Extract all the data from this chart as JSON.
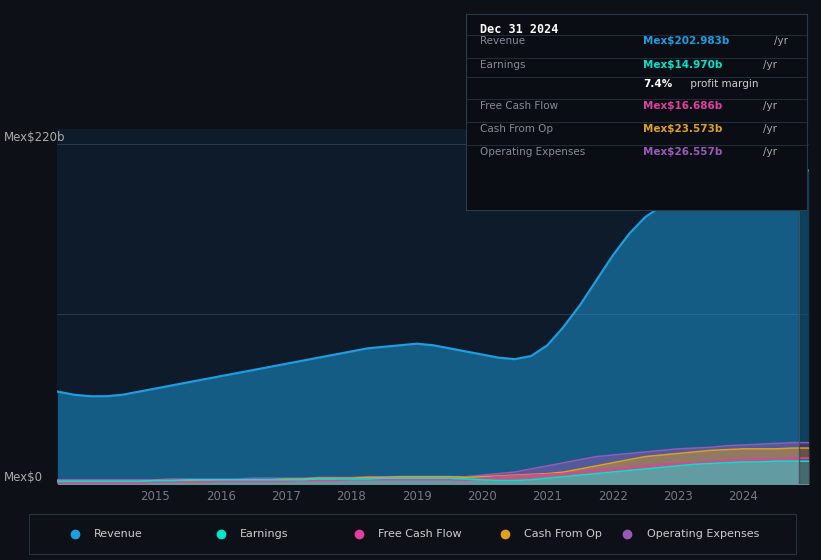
{
  "bg_color": "#0d1117",
  "plot_bg_color": "#0d1b2a",
  "title_box": {
    "date": "Dec 31 2024",
    "rows": [
      {
        "label": "Revenue",
        "value": "Mex$202.983b",
        "unit": "/yr",
        "value_color": "#1e9de0",
        "label_color": "#888899"
      },
      {
        "label": "Earnings",
        "value": "Mex$14.970b",
        "unit": "/yr",
        "value_color": "#00e5cc",
        "label_color": "#888899"
      },
      {
        "label": "",
        "value": "7.4%",
        "unit": " profit margin",
        "value_color": "#ffffff",
        "label_color": "#ffffff"
      },
      {
        "label": "Free Cash Flow",
        "value": "Mex$16.686b",
        "unit": "/yr",
        "value_color": "#e040a0",
        "label_color": "#888899"
      },
      {
        "label": "Cash From Op",
        "value": "Mex$23.573b",
        "unit": "/yr",
        "value_color": "#e0a020",
        "label_color": "#888899"
      },
      {
        "label": "Operating Expenses",
        "value": "Mex$26.557b",
        "unit": "/yr",
        "value_color": "#9b59b6",
        "label_color": "#888899"
      }
    ]
  },
  "y_label_top": "Mex$220b",
  "y_label_bottom": "Mex$0",
  "x_ticks": [
    2015,
    2016,
    2017,
    2018,
    2019,
    2020,
    2021,
    2022,
    2023,
    2024
  ],
  "years": [
    2013.5,
    2013.75,
    2014.0,
    2014.25,
    2014.5,
    2014.75,
    2015.0,
    2015.25,
    2015.5,
    2015.75,
    2016.0,
    2016.25,
    2016.5,
    2016.75,
    2017.0,
    2017.25,
    2017.5,
    2017.75,
    2018.0,
    2018.25,
    2018.5,
    2018.75,
    2019.0,
    2019.25,
    2019.5,
    2019.75,
    2020.0,
    2020.25,
    2020.5,
    2020.75,
    2021.0,
    2021.25,
    2021.5,
    2021.75,
    2022.0,
    2022.25,
    2022.5,
    2022.75,
    2023.0,
    2023.25,
    2023.5,
    2023.75,
    2024.0,
    2024.25,
    2024.5,
    2024.75,
    2025.0
  ],
  "revenue": [
    60,
    58,
    57,
    57,
    58,
    60,
    62,
    64,
    66,
    68,
    70,
    72,
    74,
    76,
    78,
    80,
    82,
    84,
    86,
    88,
    89,
    90,
    91,
    90,
    88,
    86,
    84,
    82,
    81,
    83,
    90,
    102,
    116,
    132,
    148,
    162,
    173,
    180,
    188,
    195,
    198,
    200,
    200,
    200,
    202,
    203,
    203
  ],
  "earnings": [
    2,
    2,
    2,
    2,
    2,
    2,
    2.5,
    2.5,
    3,
    3,
    3,
    3,
    3,
    3,
    3,
    3,
    3.5,
    3.5,
    3.5,
    3.5,
    4,
    4,
    4,
    4,
    4,
    3.5,
    3,
    2.5,
    2.5,
    3,
    4,
    5,
    6,
    7,
    8,
    9,
    10,
    11,
    12,
    13,
    13.5,
    14,
    14.5,
    14.5,
    15,
    15,
    15
  ],
  "free_cash_flow": [
    1,
    1,
    1,
    1,
    1,
    1,
    1.5,
    1.5,
    1.5,
    1.5,
    2,
    2,
    2,
    2,
    2,
    2.5,
    2.5,
    2.5,
    3,
    3,
    3,
    3,
    3,
    3,
    3,
    2.5,
    4,
    5,
    5.5,
    6,
    6.5,
    7,
    8,
    9,
    10,
    11,
    12,
    13,
    13.5,
    14,
    15,
    15.5,
    16,
    16.5,
    16.5,
    17,
    17
  ],
  "cash_from_op": [
    2,
    2,
    2,
    2,
    2,
    2,
    2.5,
    2.5,
    2.5,
    3,
    3,
    3,
    3,
    3,
    3.5,
    3.5,
    4,
    4,
    4,
    4.5,
    4.5,
    5,
    5,
    5,
    5,
    4.5,
    5,
    5.5,
    6,
    6.5,
    7,
    8,
    10,
    12,
    14,
    16,
    18,
    19,
    20,
    21,
    22,
    22.5,
    23,
    23,
    23,
    23.5,
    23.5
  ],
  "op_expenses": [
    3,
    3,
    3,
    3,
    3,
    3,
    3,
    3.5,
    3.5,
    3.5,
    3.5,
    3.5,
    4,
    4,
    4,
    4,
    4.5,
    4.5,
    4.5,
    5,
    5,
    5,
    5,
    5,
    5,
    5,
    6,
    7,
    8,
    10,
    12,
    14,
    16,
    18,
    19,
    20,
    21,
    22,
    23,
    23.5,
    24,
    25,
    25.5,
    26,
    26.5,
    27,
    27
  ],
  "revenue_color": "#1e9de0",
  "earnings_color": "#00e5cc",
  "fcf_color": "#e040a0",
  "cashop_color": "#e0a020",
  "opex_color": "#9b59b6",
  "legend": [
    {
      "label": "Revenue",
      "color": "#1e9de0"
    },
    {
      "label": "Earnings",
      "color": "#00e5cc"
    },
    {
      "label": "Free Cash Flow",
      "color": "#e040a0"
    },
    {
      "label": "Cash From Op",
      "color": "#e0a020"
    },
    {
      "label": "Operating Expenses",
      "color": "#9b59b6"
    }
  ]
}
